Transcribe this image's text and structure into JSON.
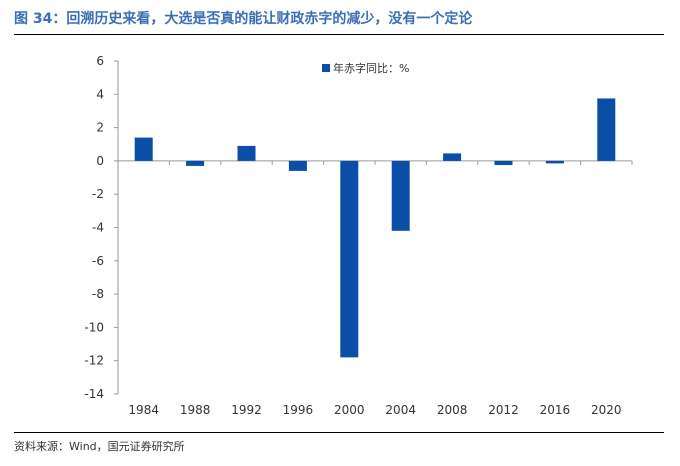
{
  "figure": {
    "title": "图 34：回溯历史来看，大选是否真的能让财政赤字的减少，没有一个定论",
    "source": "资料来源：Wind，国元证券研究所"
  },
  "colors": {
    "bar": "#0a4ea8",
    "title": "#3a6fb5",
    "axis": "#999999"
  },
  "chart_data": {
    "type": "bar",
    "categories": [
      "1984",
      "1988",
      "1992",
      "1996",
      "2000",
      "2004",
      "2008",
      "2012",
      "2016",
      "2020"
    ],
    "series": [
      {
        "name": "年赤字同比：%",
        "values": [
          1.4,
          -0.3,
          0.9,
          -0.6,
          -11.8,
          -4.2,
          0.45,
          -0.25,
          -0.15,
          3.75
        ]
      }
    ],
    "yticks": [
      "6",
      "4",
      "2",
      "0",
      "-2",
      "-4",
      "-6",
      "-8",
      "-10",
      "-12",
      "-14"
    ],
    "ylim": [
      -14,
      6
    ],
    "legend_position": "top",
    "grid": false
  }
}
